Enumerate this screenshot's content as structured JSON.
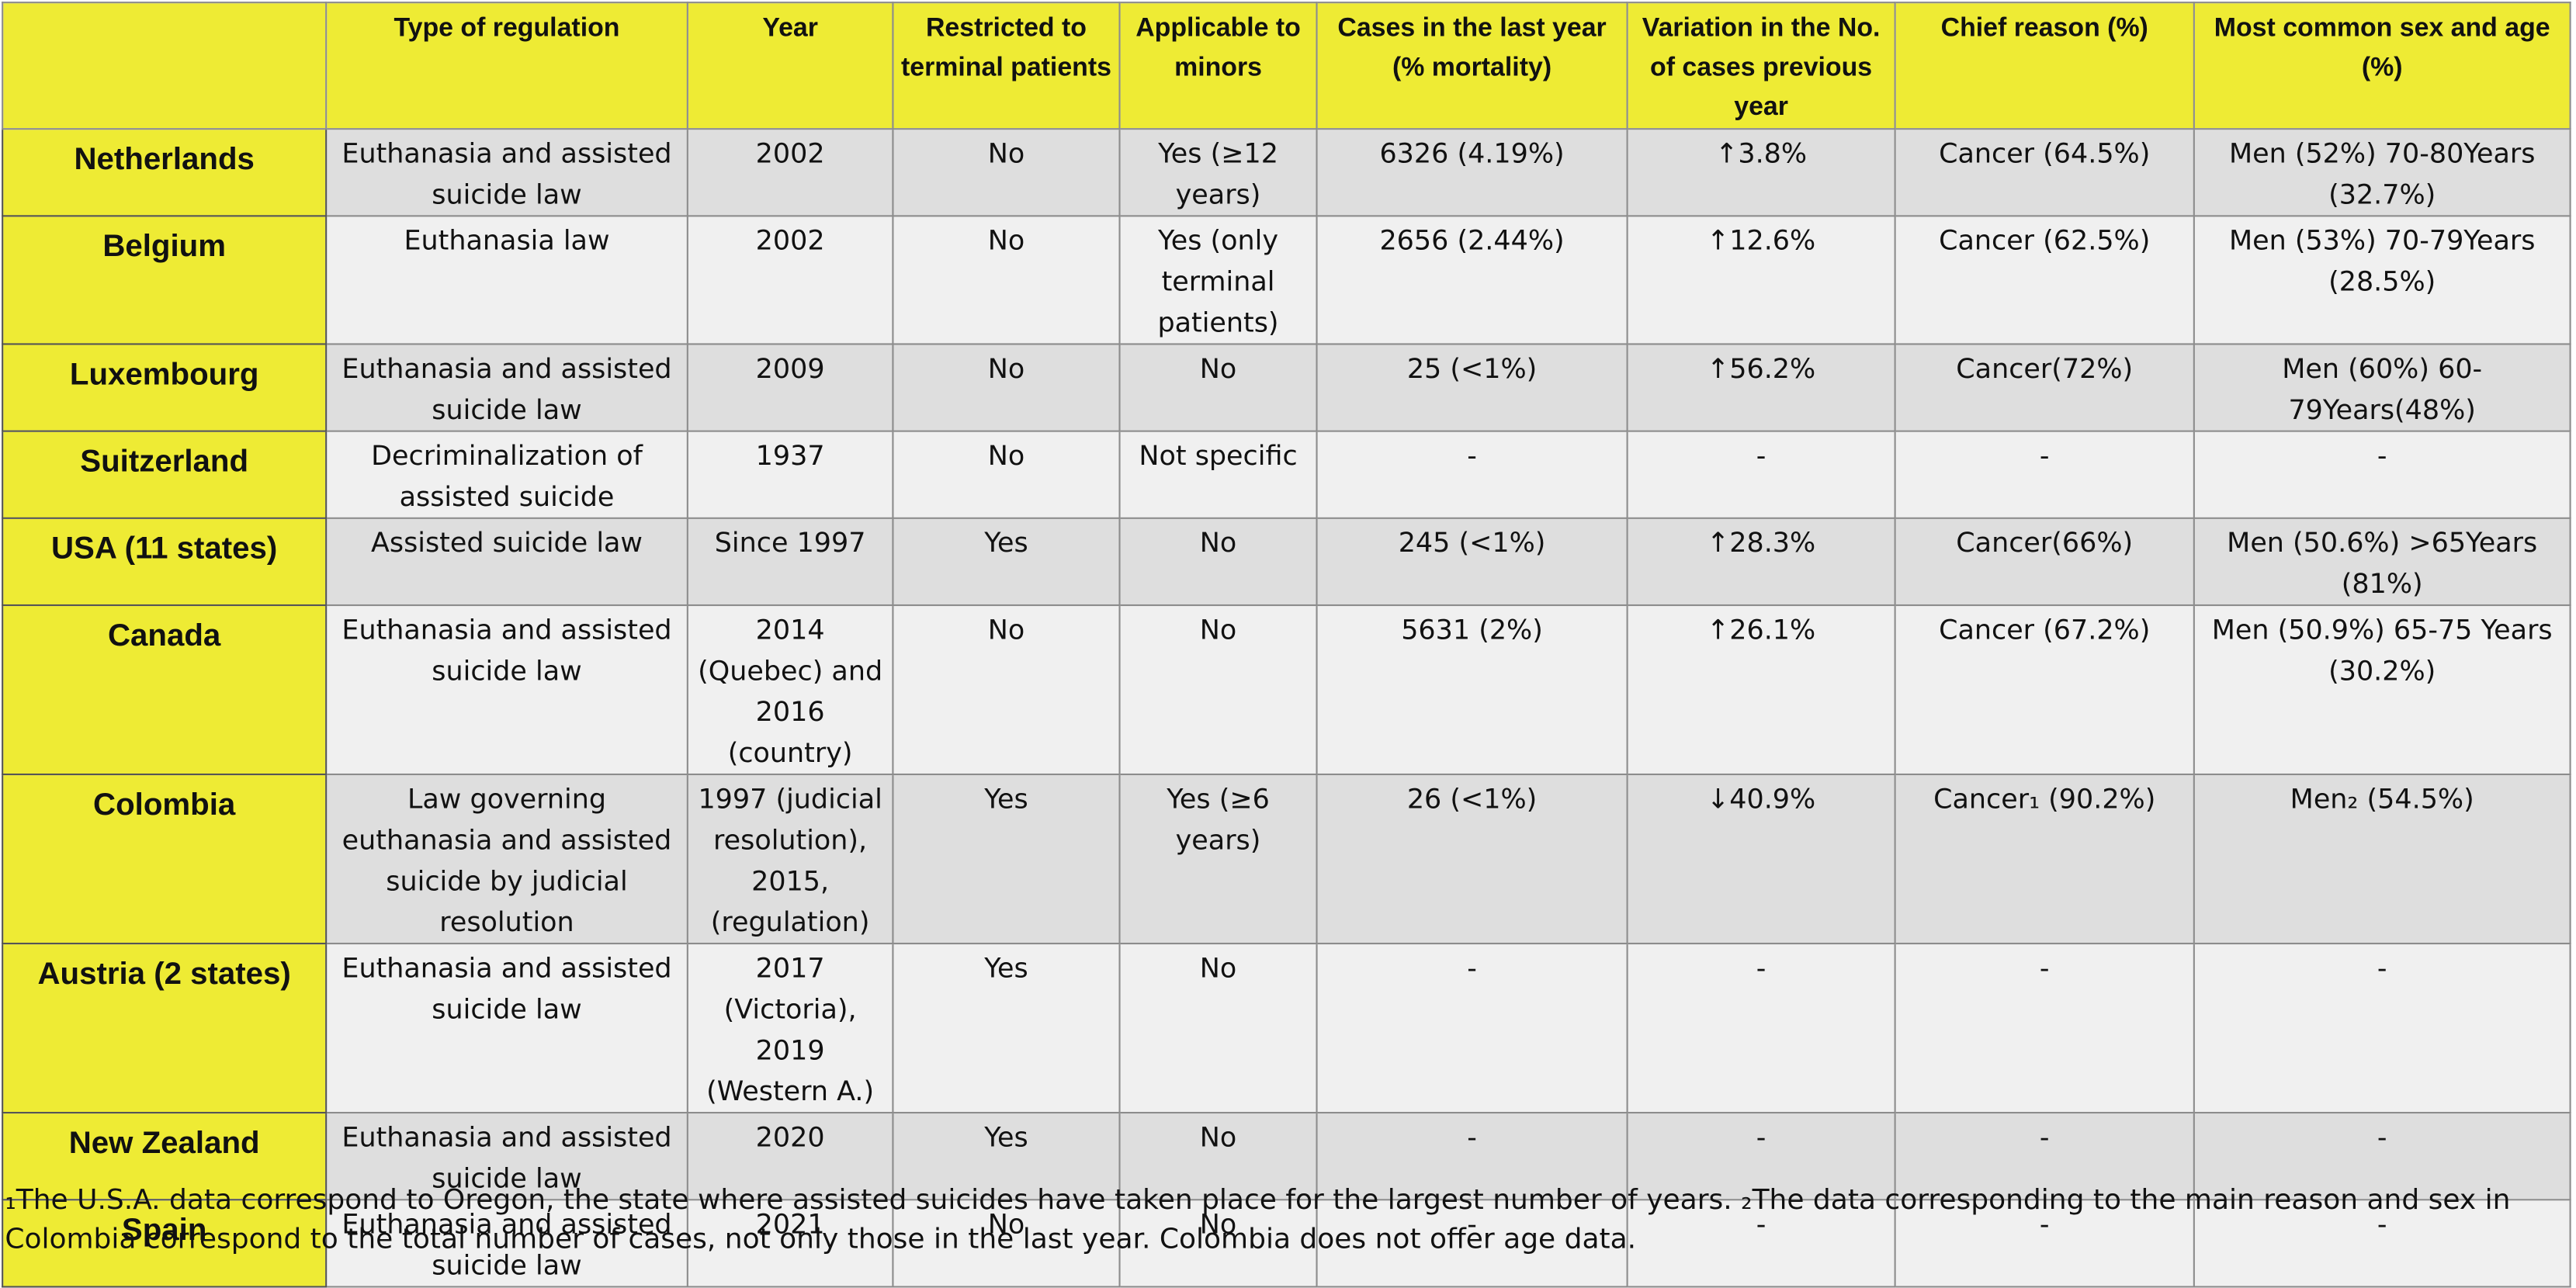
{
  "table": {
    "headers": [
      "",
      "Type of regulation",
      "Year",
      "Restricted to terminal patients",
      "Applicable to minors",
      "Cases in the last year (% mortality)",
      "Variation in the No. of cases previous year",
      "Chief reason (%)",
      "Most common sex and age (%)"
    ],
    "rows": [
      [
        "Netherlands",
        "Euthanasia and assisted suicide law",
        "2002",
        "No",
        "Yes (≥12 years)",
        "6326 (4.19%)",
        "↑3.8%",
        "Cancer (64.5%)",
        "Men (52%) 70-80Years (32.7%)"
      ],
      [
        "Belgium",
        "Euthanasia law",
        "2002",
        "No",
        "Yes (only terminal patients)",
        "2656 (2.44%)",
        "↑12.6%",
        "Cancer (62.5%)",
        "Men (53%) 70-79Years (28.5%)"
      ],
      [
        "Luxembourg",
        "Euthanasia and assisted suicide law",
        "2009",
        "No",
        "No",
        "25 (<1%)",
        "↑56.2%",
        "Cancer(72%)",
        "Men (60%) 60-79Years(48%)"
      ],
      [
        "Suitzerland",
        "Decriminalization of assisted suicide",
        "1937",
        "No",
        "Not specific",
        "-",
        "-",
        "-",
        "-"
      ],
      [
        "USA (11 states)",
        "Assisted suicide law",
        "Since 1997",
        "Yes",
        "No",
        "245 (<1%)",
        "↑28.3%",
        "Cancer(66%)",
        "Men (50.6%) >65Years (81%)"
      ],
      [
        "Canada",
        "Euthanasia and assisted suicide law",
        "2014 (Quebec) and 2016 (country)",
        "No",
        "No",
        "5631 (2%)",
        "↑26.1%",
        "Cancer (67.2%)",
        "Men (50.9%) 65-75 Years (30.2%)"
      ],
      [
        "Colombia",
        "Law governing euthanasia and assisted suicide by judicial resolution",
        "1997 (judicial resolution), 2015, (regulation)",
        "Yes",
        "Yes (≥6 years)",
        "26 (<1%)",
        "↓40.9%",
        "Cancer₁ (90.2%)",
        "Men₂ (54.5%)"
      ],
      [
        "Austria (2 states)",
        "Euthanasia and assisted suicide law",
        "2017 (Victoria), 2019 (Western A.)",
        "Yes",
        "No",
        "-",
        "-",
        "-",
        "-"
      ],
      [
        "New Zealand",
        "Euthanasia and assisted suicide law",
        "2020",
        "Yes",
        "No",
        "-",
        "-",
        "-",
        "-"
      ],
      [
        "Spain",
        "Euthanasia and assisted suicide law",
        "2021",
        "No",
        "No",
        "-",
        "-",
        "-",
        "-"
      ]
    ]
  },
  "footnotes": [
    "₁The U.S.A. data correspond to Oregon, the state where assisted suicides have taken place for the largest number of years.",
    "₂The data corresponding to the main reason and sex in Colombia correspond to the total number of cases, not only those in the last year. Colombia does not offer age data."
  ]
}
